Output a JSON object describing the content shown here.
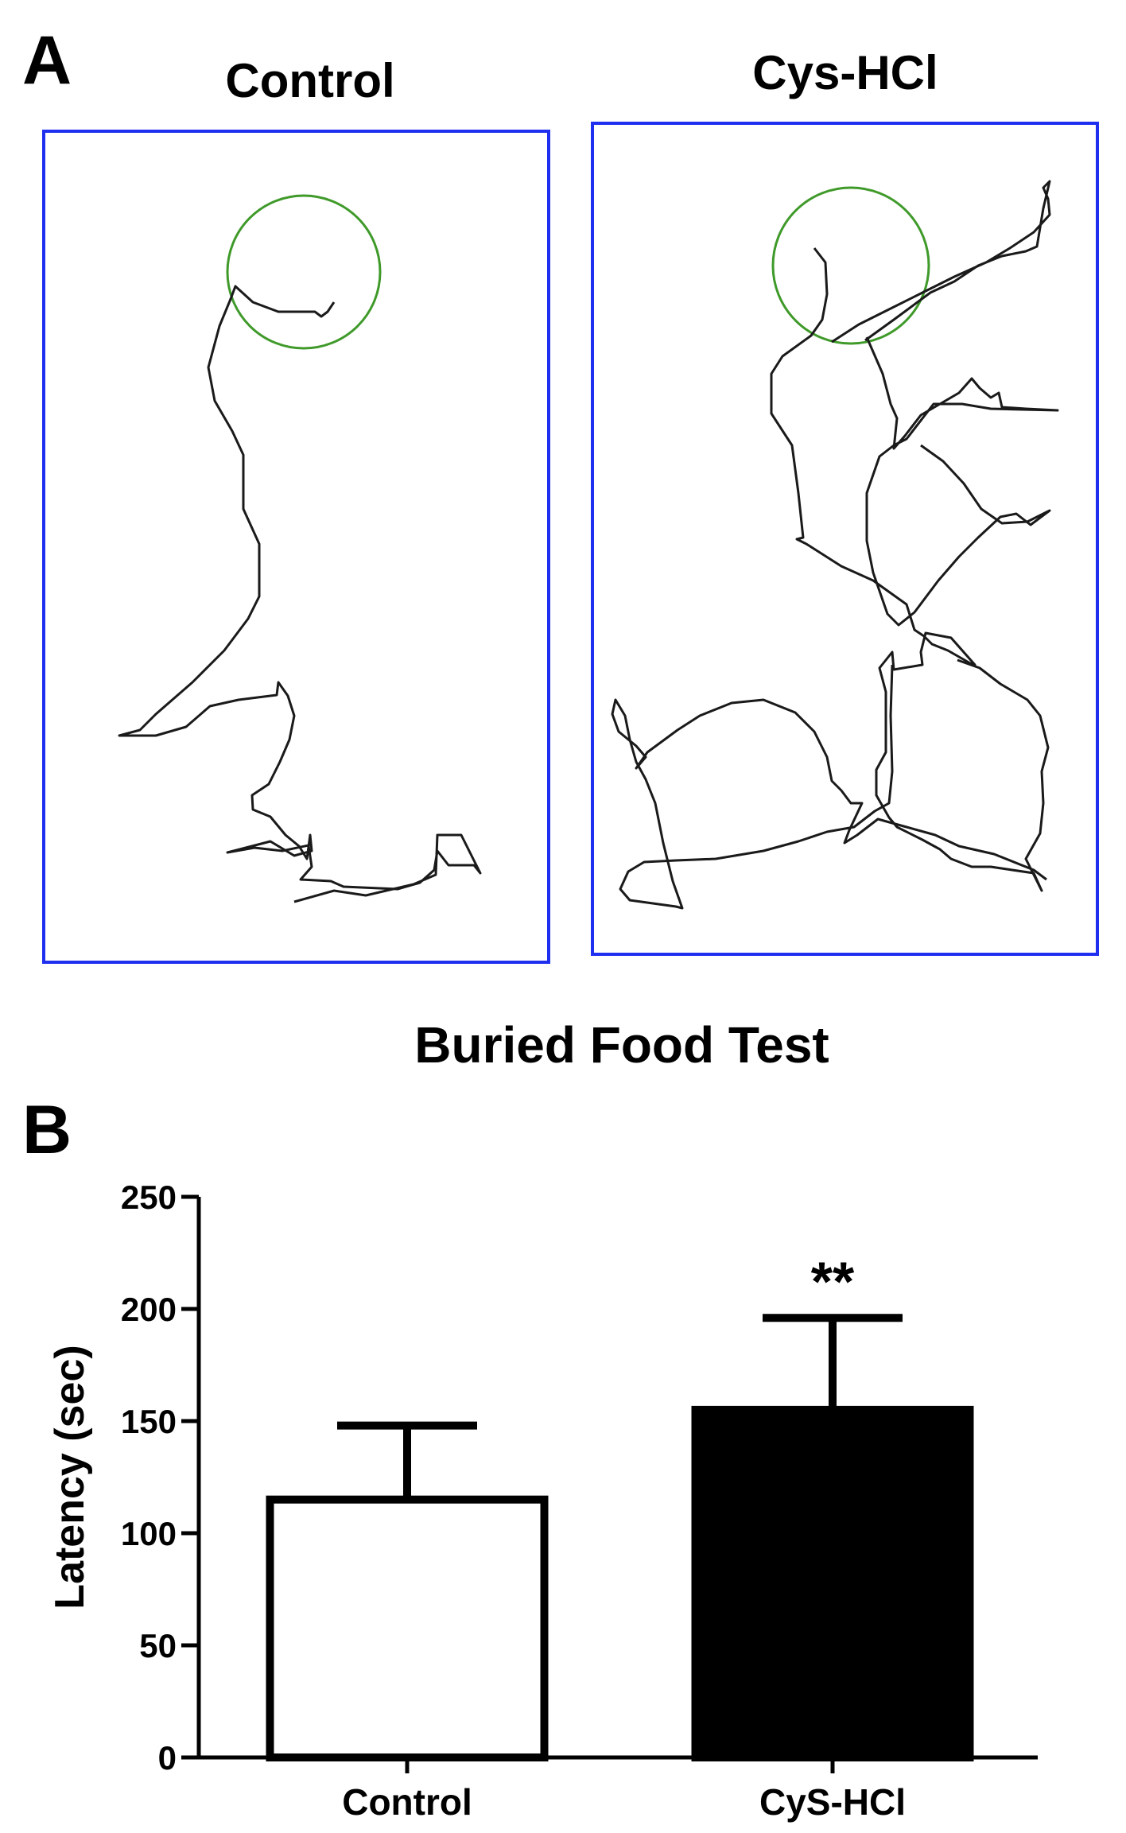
{
  "panel_a": {
    "letter": "A",
    "left_title": "Control",
    "right_title": "Cys-HCl"
  },
  "panel_b": {
    "letter": "B"
  },
  "chart_data": {
    "type": "bar",
    "title": "Buried Food Test",
    "xlabel": "",
    "ylabel": "Latency (sec)",
    "ylim": [
      0,
      250
    ],
    "yticks": [
      "0",
      "50",
      "100",
      "150",
      "200",
      "250"
    ],
    "categories": [
      "Control",
      "CyS-HCl"
    ],
    "values": [
      115,
      155
    ],
    "errors": [
      33,
      41
    ],
    "fills": [
      "#ffffff",
      "#000000"
    ],
    "annotations": [
      "",
      "**"
    ],
    "grid": false
  }
}
